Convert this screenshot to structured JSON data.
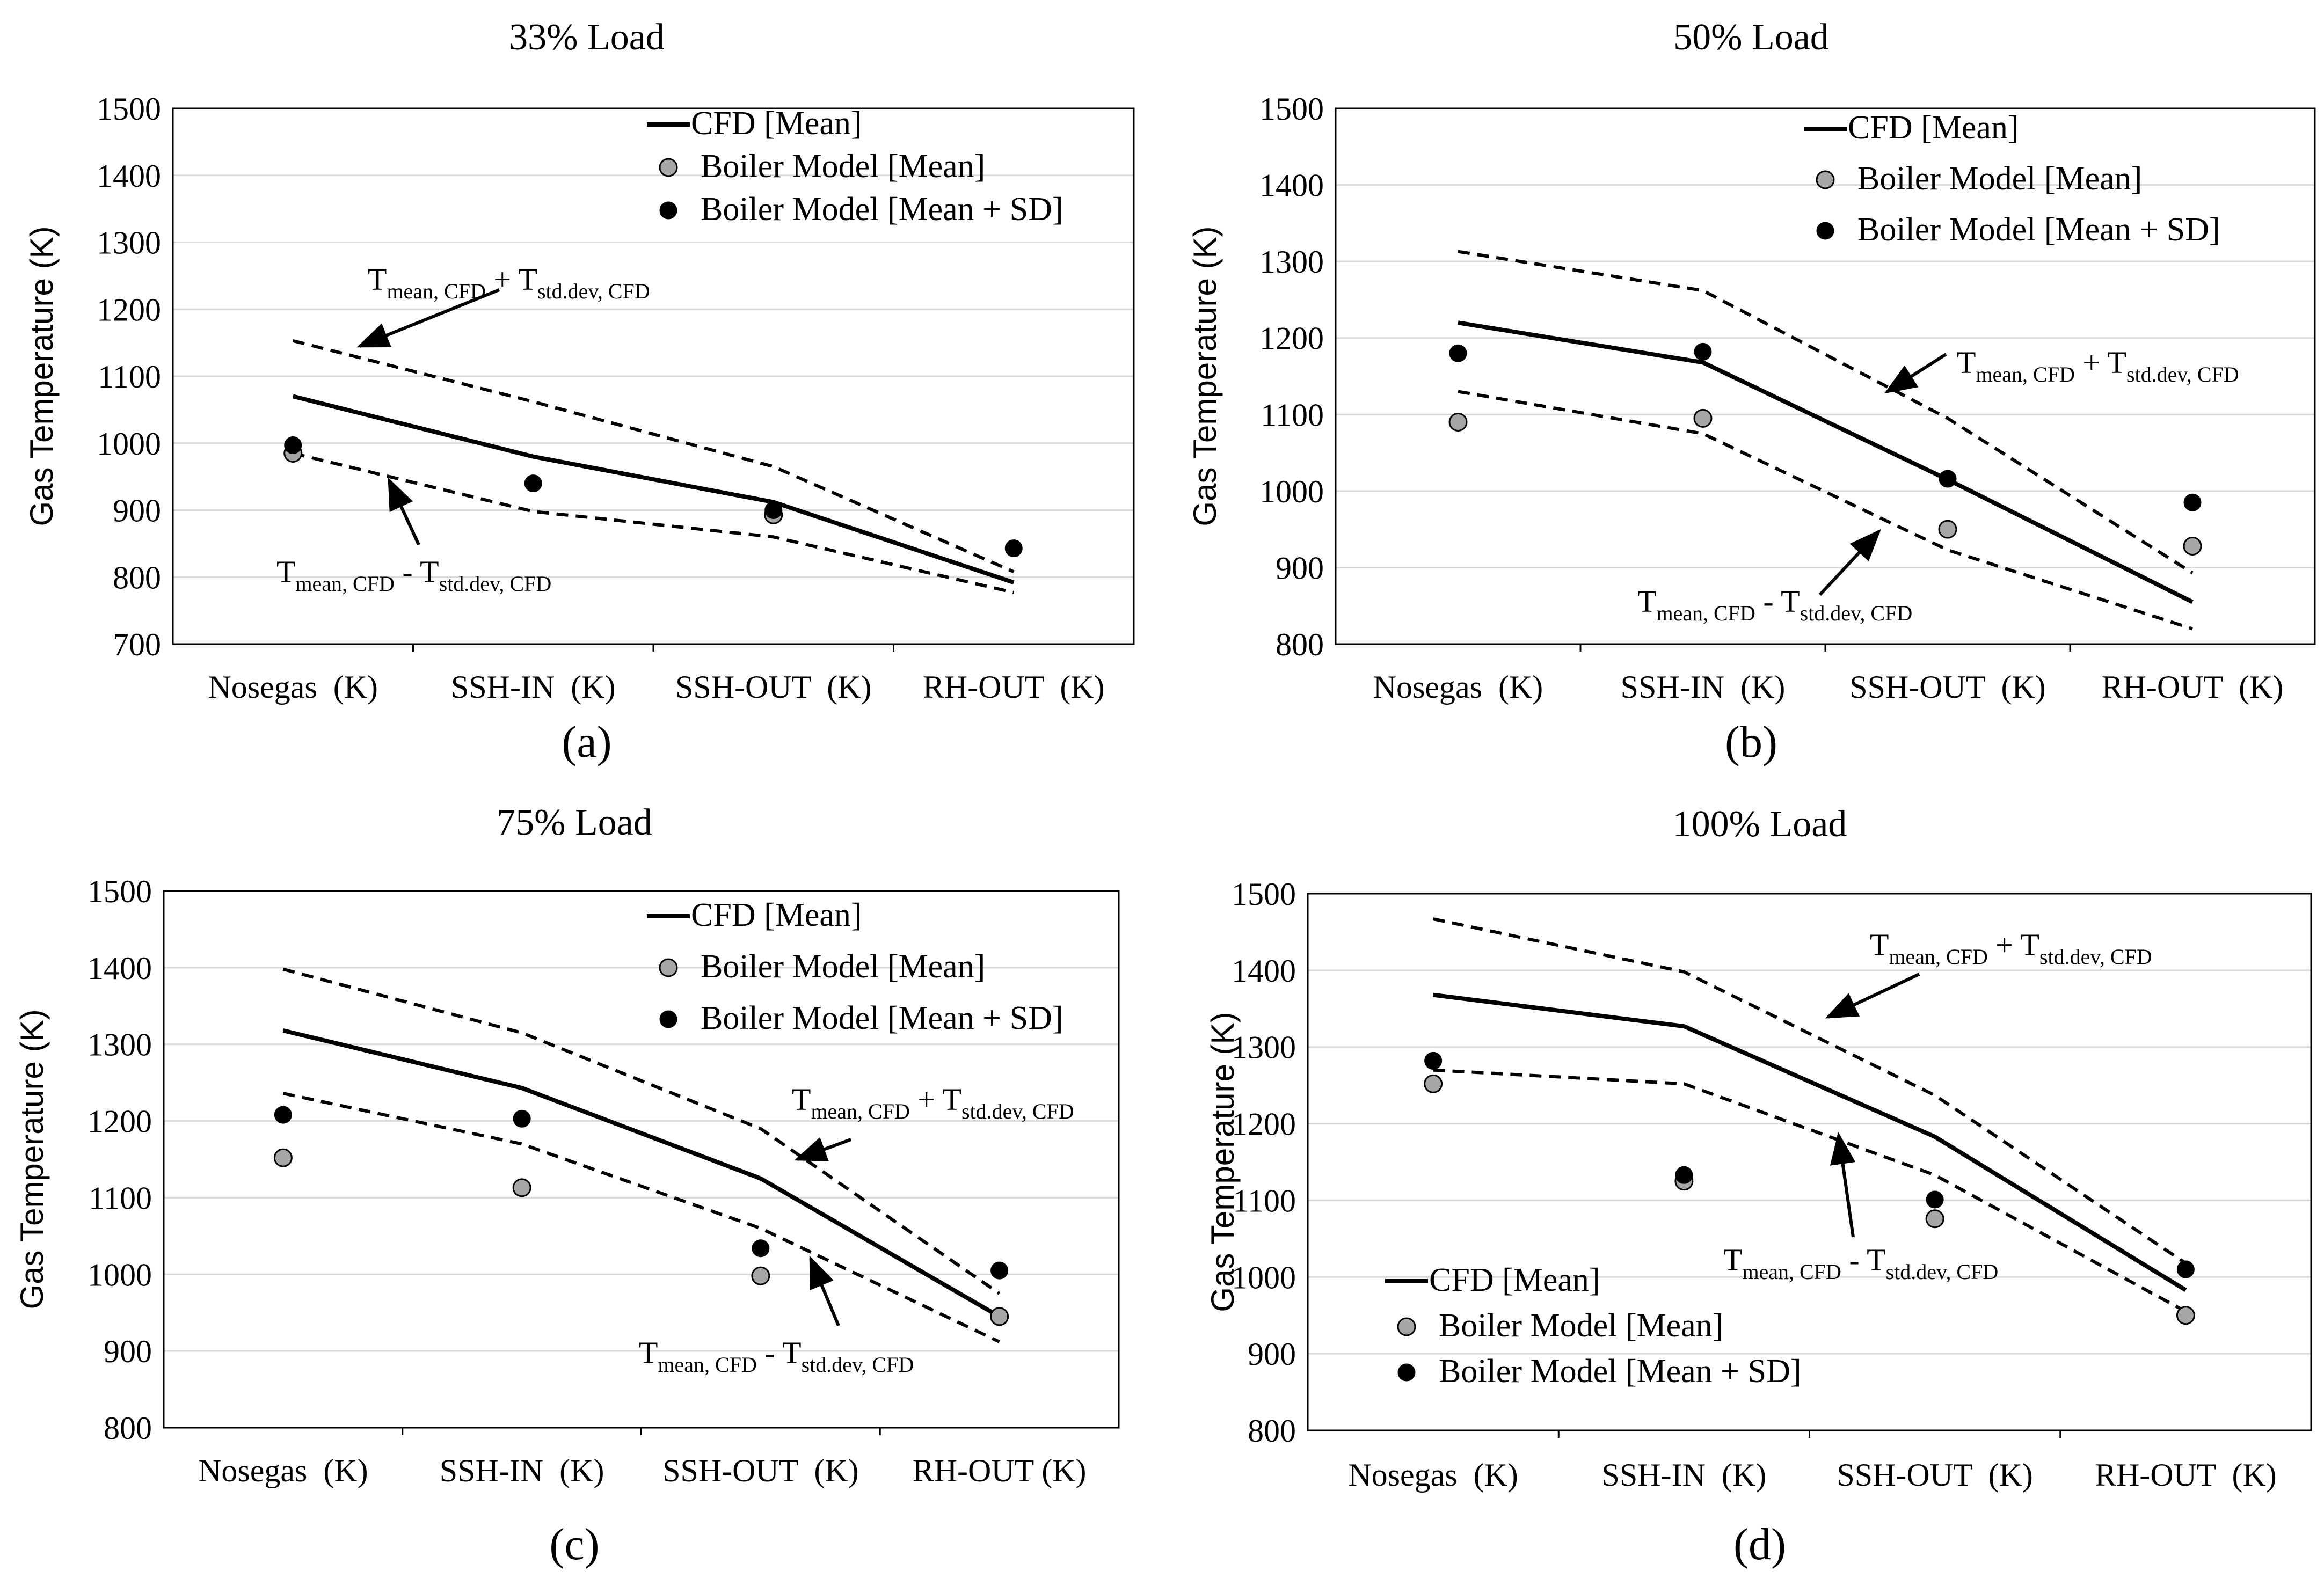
{
  "chart_data": [
    {
      "id": "a",
      "type": "line",
      "title": "33% Load",
      "panel_label": "(a)",
      "ylabel": "Gas Temperature (K)",
      "xlabel": "",
      "categories": [
        "Nosegas  (K)",
        "SSH-IN  (K)",
        "SSH-OUT  (K)",
        "RH-OUT  (K)"
      ],
      "ylim": [
        700,
        1500
      ],
      "yticks": [
        700,
        800,
        900,
        1000,
        1100,
        1200,
        1300,
        1400,
        1500
      ],
      "grid": true,
      "legend_position": "top-right",
      "legend": [
        "CFD [Mean]",
        "Boiler Model [Mean]",
        "Boiler Model [Mean + SD]"
      ],
      "series": [
        {
          "name": "CFD [Mean]",
          "style": "solid-line",
          "values": [
            1070,
            980,
            912,
            792
          ]
        },
        {
          "name": "Tmean, CFD + Tstd.dev, CFD",
          "style": "dashed-line",
          "values": [
            1153,
            1062,
            965,
            808
          ]
        },
        {
          "name": "Tmean, CFD - Tstd.dev, CFD",
          "style": "dashed-line",
          "values": [
            985,
            898,
            860,
            777
          ]
        },
        {
          "name": "Boiler Model [Mean]",
          "style": "gray-dot",
          "values": [
            985,
            null,
            893,
            null
          ]
        },
        {
          "name": "Boiler Model [Mean + SD]",
          "style": "black-dot",
          "values": [
            997,
            940,
            900,
            843
          ]
        }
      ],
      "annotations": [
        {
          "text": "Tmean, CFD + Tstd.dev, CFD",
          "main1": "T",
          "sub1": "mean, CFD",
          "op": " + ",
          "main2": "T",
          "sub2": "std.dev, CFD"
        },
        {
          "text": "Tmean, CFD - Tstd.dev, CFD",
          "main1": "T",
          "sub1": "mean, CFD",
          "op": " - ",
          "main2": "T",
          "sub2": "std.dev, CFD"
        }
      ]
    },
    {
      "id": "b",
      "type": "line",
      "title": "50% Load",
      "panel_label": "(b)",
      "ylabel": "Gas Temperature (K)",
      "xlabel": "",
      "categories": [
        "Nosegas  (K)",
        "SSH-IN  (K)",
        "SSH-OUT  (K)",
        "RH-OUT  (K)"
      ],
      "ylim": [
        800,
        1500
      ],
      "yticks": [
        800,
        900,
        1000,
        1100,
        1200,
        1300,
        1400,
        1500
      ],
      "grid": true,
      "legend_position": "top-right",
      "legend": [
        "CFD [Mean]",
        "Boiler Model [Mean]",
        "Boiler Model [Mean + SD]"
      ],
      "series": [
        {
          "name": "CFD [Mean]",
          "style": "solid-line",
          "values": [
            1220,
            1168,
            1015,
            855
          ]
        },
        {
          "name": "Tmean, CFD + Tstd.dev, CFD",
          "style": "dashed-line",
          "values": [
            1313,
            1262,
            1095,
            893
          ]
        },
        {
          "name": "Tmean, CFD - Tstd.dev, CFD",
          "style": "dashed-line",
          "values": [
            1130,
            1075,
            923,
            820
          ]
        },
        {
          "name": "Boiler Model [Mean]",
          "style": "gray-dot",
          "values": [
            1090,
            1095,
            950,
            928
          ]
        },
        {
          "name": "Boiler Model [Mean + SD]",
          "style": "black-dot",
          "values": [
            1180,
            1182,
            1016,
            985
          ]
        }
      ],
      "annotations": [
        {
          "text": "Tmean, CFD + Tstd.dev, CFD",
          "main1": "T",
          "sub1": "mean, CFD",
          "op": " + ",
          "main2": "T",
          "sub2": "std.dev, CFD"
        },
        {
          "text": "Tmean, CFD - Tstd.dev, CFD",
          "main1": "T",
          "sub1": "mean, CFD",
          "op": " - ",
          "main2": "T",
          "sub2": "std.dev, CFD"
        }
      ]
    },
    {
      "id": "c",
      "type": "line",
      "title": "75% Load",
      "panel_label": "(c)",
      "ylabel": "Gas Temperature (K)",
      "xlabel": "",
      "categories": [
        "Nosegas  (K)",
        "SSH-IN  (K)",
        "SSH-OUT  (K)",
        "RH-OUT (K)"
      ],
      "ylim": [
        800,
        1500
      ],
      "yticks": [
        800,
        900,
        1000,
        1100,
        1200,
        1300,
        1400,
        1500
      ],
      "grid": true,
      "legend_position": "top-right",
      "legend": [
        "CFD [Mean]",
        "Boiler Model [Mean]",
        "Boiler Model [Mean + SD]"
      ],
      "series": [
        {
          "name": "CFD [Mean]",
          "style": "solid-line",
          "values": [
            1318,
            1243,
            1125,
            945
          ]
        },
        {
          "name": "Tmean, CFD + Tstd.dev, CFD",
          "style": "dashed-line",
          "values": [
            1398,
            1315,
            1190,
            975
          ]
        },
        {
          "name": "Tmean, CFD - Tstd.dev, CFD",
          "style": "dashed-line",
          "values": [
            1236,
            1170,
            1060,
            912
          ]
        },
        {
          "name": "Boiler Model [Mean]",
          "style": "gray-dot",
          "values": [
            1152,
            1113,
            998,
            945
          ]
        },
        {
          "name": "Boiler Model [Mean + SD]",
          "style": "black-dot",
          "values": [
            1208,
            1203,
            1034,
            1005
          ]
        }
      ],
      "annotations": [
        {
          "text": "Tmean, CFD + Tstd.dev, CFD",
          "main1": "T",
          "sub1": "mean, CFD",
          "op": " + ",
          "main2": "T",
          "sub2": "std.dev, CFD"
        },
        {
          "text": "Tmean, CFD - Tstd.dev, CFD",
          "main1": "T",
          "sub1": "mean, CFD",
          "op": " - ",
          "main2": "T",
          "sub2": "std.dev, CFD"
        }
      ]
    },
    {
      "id": "d",
      "type": "line",
      "title": "100% Load",
      "panel_label": "(d)",
      "ylabel": "Gas Temperature (K)",
      "xlabel": "",
      "categories": [
        "Nosegas  (K)",
        "SSH-IN  (K)",
        "SSH-OUT  (K)",
        "RH-OUT  (K)"
      ],
      "ylim": [
        800,
        1500
      ],
      "yticks": [
        800,
        900,
        1000,
        1100,
        1200,
        1300,
        1400,
        1500
      ],
      "grid": true,
      "legend_position": "bottom-left",
      "legend": [
        "CFD [Mean]",
        "Boiler Model [Mean]",
        "Boiler Model [Mean + SD]"
      ],
      "series": [
        {
          "name": "CFD [Mean]",
          "style": "solid-line",
          "values": [
            1368,
            1327,
            1183,
            983
          ]
        },
        {
          "name": "Tmean, CFD + Tstd.dev, CFD",
          "style": "dashed-line",
          "values": [
            1467,
            1398,
            1237,
            1018
          ]
        },
        {
          "name": "Tmean, CFD - Tstd.dev, CFD",
          "style": "dashed-line",
          "values": [
            1270,
            1252,
            1133,
            955
          ]
        },
        {
          "name": "Boiler Model [Mean]",
          "style": "gray-dot",
          "values": [
            1252,
            1125,
            1076,
            950
          ]
        },
        {
          "name": "Boiler Model [Mean + SD]",
          "style": "black-dot",
          "values": [
            1282,
            1133,
            1101,
            1010
          ]
        }
      ],
      "annotations": [
        {
          "text": "Tmean, CFD + Tstd.dev, CFD",
          "main1": "T",
          "sub1": "mean, CFD",
          "op": " + ",
          "main2": "T",
          "sub2": "std.dev, CFD"
        },
        {
          "text": "Tmean, CFD - Tstd.dev, CFD",
          "main1": "T",
          "sub1": "mean, CFD",
          "op": " - ",
          "main2": "T",
          "sub2": "std.dev, CFD"
        }
      ]
    }
  ]
}
